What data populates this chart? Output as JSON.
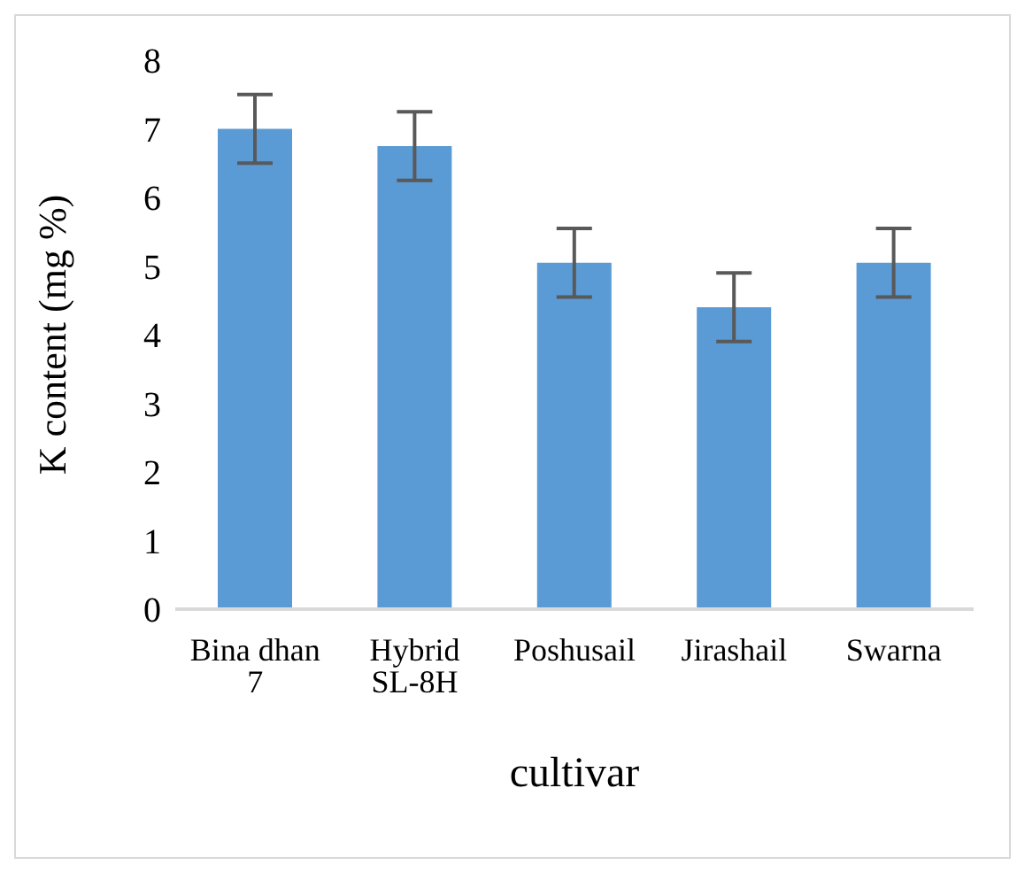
{
  "chart_data": {
    "type": "bar",
    "xlabel": "cultivar",
    "ylabel": "K content (mg %)",
    "categories": [
      "Bina dhan 7",
      "Hybrid SL-8H",
      "Poshusail",
      "Jirashail",
      "Swarna"
    ],
    "values": [
      7.0,
      6.75,
      5.05,
      4.4,
      5.05
    ],
    "errors": [
      0.5,
      0.5,
      0.5,
      0.5,
      0.5
    ],
    "color": "#5b9bd5",
    "ylim": [
      0,
      8
    ],
    "yticks": [
      0,
      1,
      2,
      3,
      4,
      5,
      6,
      7,
      8
    ],
    "grid": false
  }
}
